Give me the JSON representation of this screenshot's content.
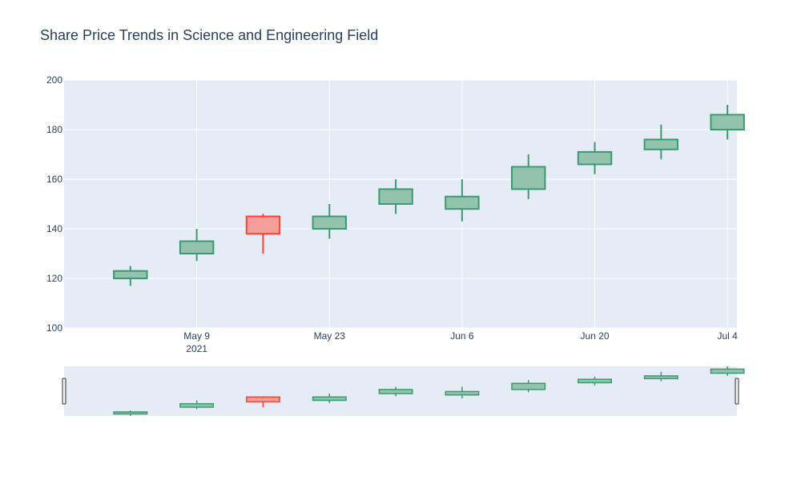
{
  "chart_data": {
    "type": "candlestick",
    "title": "Share Price Trends in Science and Engineering Field",
    "xlabel": "",
    "ylabel": "",
    "ylim": [
      100,
      200
    ],
    "xlim": [
      "2021-04-25",
      "2021-07-05"
    ],
    "y_ticks": [
      100,
      120,
      140,
      160,
      180,
      200
    ],
    "x_ticks": [
      {
        "date": "2021-05-09",
        "label": "May 9",
        "sublabel": "2021"
      },
      {
        "date": "2021-05-23",
        "label": "May 23",
        "sublabel": ""
      },
      {
        "date": "2021-06-06",
        "label": "Jun 6",
        "sublabel": ""
      },
      {
        "date": "2021-06-20",
        "label": "Jun 20",
        "sublabel": ""
      },
      {
        "date": "2021-07-04",
        "label": "Jul 4",
        "sublabel": ""
      }
    ],
    "candles": [
      {
        "date": "2021-05-02",
        "open": 120,
        "high": 125,
        "low": 117,
        "close": 123
      },
      {
        "date": "2021-05-09",
        "open": 130,
        "high": 140,
        "low": 127,
        "close": 135
      },
      {
        "date": "2021-05-16",
        "open": 145,
        "high": 146,
        "low": 130,
        "close": 138
      },
      {
        "date": "2021-05-23",
        "open": 140,
        "high": 150,
        "low": 136,
        "close": 145
      },
      {
        "date": "2021-05-30",
        "open": 150,
        "high": 160,
        "low": 146,
        "close": 156
      },
      {
        "date": "2021-06-06",
        "open": 148,
        "high": 160,
        "low": 143,
        "close": 153
      },
      {
        "date": "2021-06-13",
        "open": 156,
        "high": 170,
        "low": 152,
        "close": 165
      },
      {
        "date": "2021-06-20",
        "open": 166,
        "high": 175,
        "low": 162,
        "close": 171
      },
      {
        "date": "2021-06-27",
        "open": 172,
        "high": 182,
        "low": 168,
        "close": 176
      },
      {
        "date": "2021-07-04",
        "open": 180,
        "high": 190,
        "low": 176,
        "close": 186
      }
    ],
    "colors": {
      "increasing_line": "#3d9970",
      "increasing_fill": "#93c2ad",
      "decreasing_line": "#ff4136",
      "decreasing_fill": "#f59d99",
      "plot_bg": "#e5ecf6",
      "grid": "#ffffff",
      "text": "#2a3f5f"
    },
    "grid": true,
    "range_slider": true
  }
}
